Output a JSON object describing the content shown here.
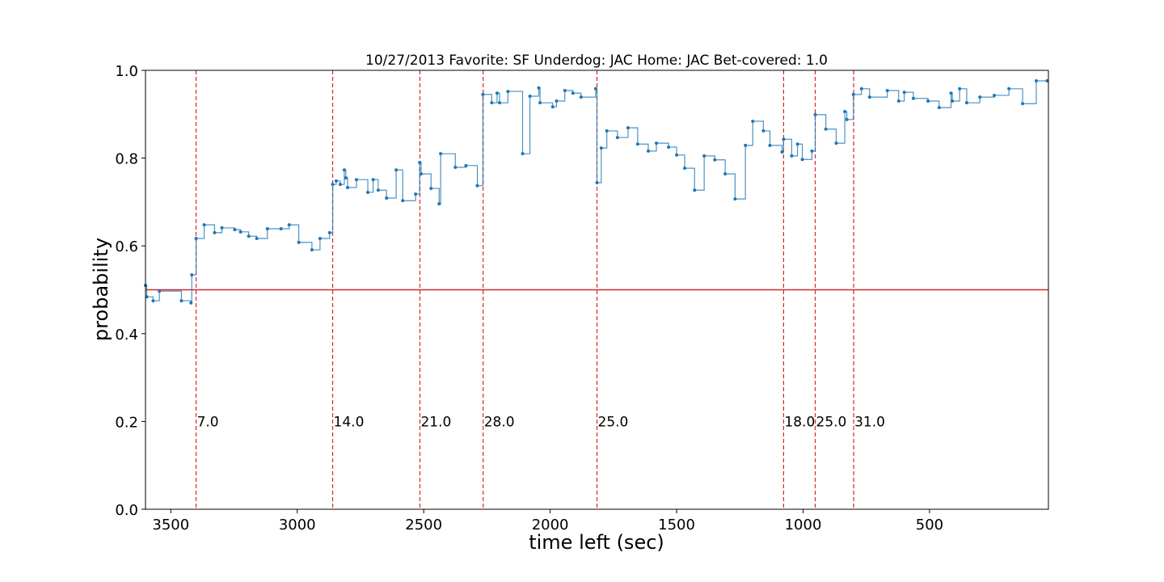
{
  "chart_data": {
    "type": "step",
    "title": "10/27/2013 Favorite: SF Underdog: JAC Home: JAC Bet-covered: 1.0",
    "xlabel": "time left (sec)",
    "ylabel": "probability",
    "color": "#1f77b4",
    "x": [
      3600,
      3595,
      3570,
      3545,
      3458,
      3420,
      3417,
      3400,
      3368,
      3327,
      3298,
      3247,
      3224,
      3192,
      3160,
      3118,
      3064,
      3032,
      2994,
      2942,
      2910,
      2872,
      2860,
      2846,
      2830,
      2814,
      2808,
      2801,
      2766,
      2721,
      2700,
      2680,
      2647,
      2609,
      2583,
      2532,
      2516,
      2510,
      2471,
      2439,
      2433,
      2375,
      2333,
      2288,
      2266,
      2231,
      2210,
      2200,
      2167,
      2109,
      2080,
      2045,
      2040,
      1990,
      1975,
      1942,
      1910,
      1878,
      1820,
      1815,
      1798,
      1776,
      1734,
      1692,
      1654,
      1612,
      1580,
      1532,
      1500,
      1468,
      1429,
      1391,
      1349,
      1308,
      1269,
      1228,
      1199,
      1157,
      1131,
      1083,
      1077,
      1045,
      1022,
      1003,
      965,
      952,
      910,
      869,
      835,
      827,
      801,
      769,
      737,
      667,
      622,
      600,
      564,
      506,
      462,
      415,
      410,
      381,
      353,
      301,
      244,
      186,
      132,
      78,
      35
    ],
    "values": [
      0.51,
      0.484,
      0.475,
      0.497,
      0.475,
      0.47,
      0.534,
      0.617,
      0.648,
      0.63,
      0.641,
      0.637,
      0.632,
      0.622,
      0.617,
      0.639,
      0.639,
      0.648,
      0.608,
      0.591,
      0.617,
      0.63,
      0.74,
      0.748,
      0.74,
      0.773,
      0.755,
      0.733,
      0.751,
      0.722,
      0.751,
      0.727,
      0.709,
      0.773,
      0.703,
      0.718,
      0.79,
      0.764,
      0.731,
      0.696,
      0.81,
      0.779,
      0.783,
      0.737,
      0.945,
      0.926,
      0.948,
      0.926,
      0.952,
      0.81,
      0.941,
      0.96,
      0.926,
      0.917,
      0.93,
      0.954,
      0.948,
      0.939,
      0.958,
      0.744,
      0.823,
      0.862,
      0.847,
      0.869,
      0.832,
      0.816,
      0.834,
      0.825,
      0.807,
      0.777,
      0.727,
      0.805,
      0.796,
      0.764,
      0.707,
      0.829,
      0.884,
      0.862,
      0.829,
      0.814,
      0.843,
      0.805,
      0.832,
      0.797,
      0.816,
      0.899,
      0.866,
      0.834,
      0.906,
      0.888,
      0.945,
      0.958,
      0.939,
      0.954,
      0.93,
      0.95,
      0.936,
      0.93,
      0.915,
      0.948,
      0.93,
      0.958,
      0.926,
      0.939,
      0.943,
      0.958,
      0.924,
      0.976,
      0.976
    ],
    "xlim": [
      3600,
      30
    ],
    "ylim": [
      0,
      1
    ],
    "xticks": [
      3500,
      3000,
      2500,
      2000,
      1500,
      1000,
      500
    ],
    "yticks": [
      {
        "value": 0,
        "label": "0.0"
      },
      {
        "value": 0.2,
        "label": "0.2"
      },
      {
        "value": 0.4,
        "label": "0.4"
      },
      {
        "value": 0.6,
        "label": "0.6"
      },
      {
        "value": 0.8,
        "label": "0.8"
      },
      {
        "value": 1,
        "label": "1.0"
      }
    ],
    "hline": 0.5,
    "hline_color": "#d62728",
    "annotation_y": 0.2,
    "annotations": [
      {
        "x": 3400,
        "text": "7.0"
      },
      {
        "x": 2860,
        "text": "14.0"
      },
      {
        "x": 2515,
        "text": "21.0"
      },
      {
        "x": 2265,
        "text": "28.0"
      },
      {
        "x": 1815,
        "text": "25.0"
      },
      {
        "x": 1077,
        "text": "18.0"
      },
      {
        "x": 952,
        "text": "25.0"
      },
      {
        "x": 800,
        "text": "31.0"
      }
    ]
  }
}
